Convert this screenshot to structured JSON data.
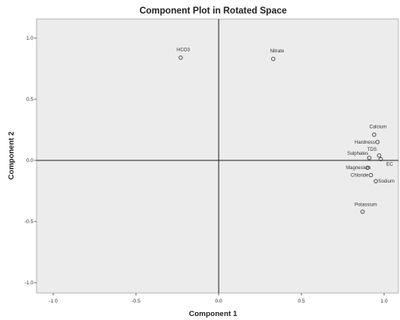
{
  "chart_data": {
    "type": "scatter",
    "title": "Component Plot in Rotated Space",
    "xlabel": "Component 1",
    "ylabel": "Component 2",
    "xlim": [
      -1.0,
      1.0
    ],
    "ylim": [
      -1.0,
      1.0
    ],
    "x_ticks": [
      "-1.0",
      "-0.5",
      "0.0",
      "0.5",
      "1.0"
    ],
    "y_ticks": [
      "1.0",
      "0.5",
      "0.0",
      "-0.5",
      "-1.0"
    ],
    "grid": false,
    "reference_lines": {
      "x": 0,
      "y": 0
    },
    "points": [
      {
        "label": "HCO3",
        "x": -0.23,
        "y": 0.84
      },
      {
        "label": "Nitrate",
        "x": 0.33,
        "y": 0.83
      },
      {
        "label": "Calcium",
        "x": 0.94,
        "y": 0.21
      },
      {
        "label": "Hardness",
        "x": 0.96,
        "y": 0.15
      },
      {
        "label": "TDS",
        "x": 0.97,
        "y": 0.04
      },
      {
        "label": "Sulphates",
        "x": 0.91,
        "y": 0.02
      },
      {
        "label": "EC",
        "x": 0.98,
        "y": 0.01
      },
      {
        "label": "Magnesium",
        "x": 0.9,
        "y": -0.06
      },
      {
        "label": "Chloride",
        "x": 0.92,
        "y": -0.12
      },
      {
        "label": "Sodium",
        "x": 0.95,
        "y": -0.17
      },
      {
        "label": "Potassium",
        "x": 0.87,
        "y": -0.42
      }
    ]
  }
}
